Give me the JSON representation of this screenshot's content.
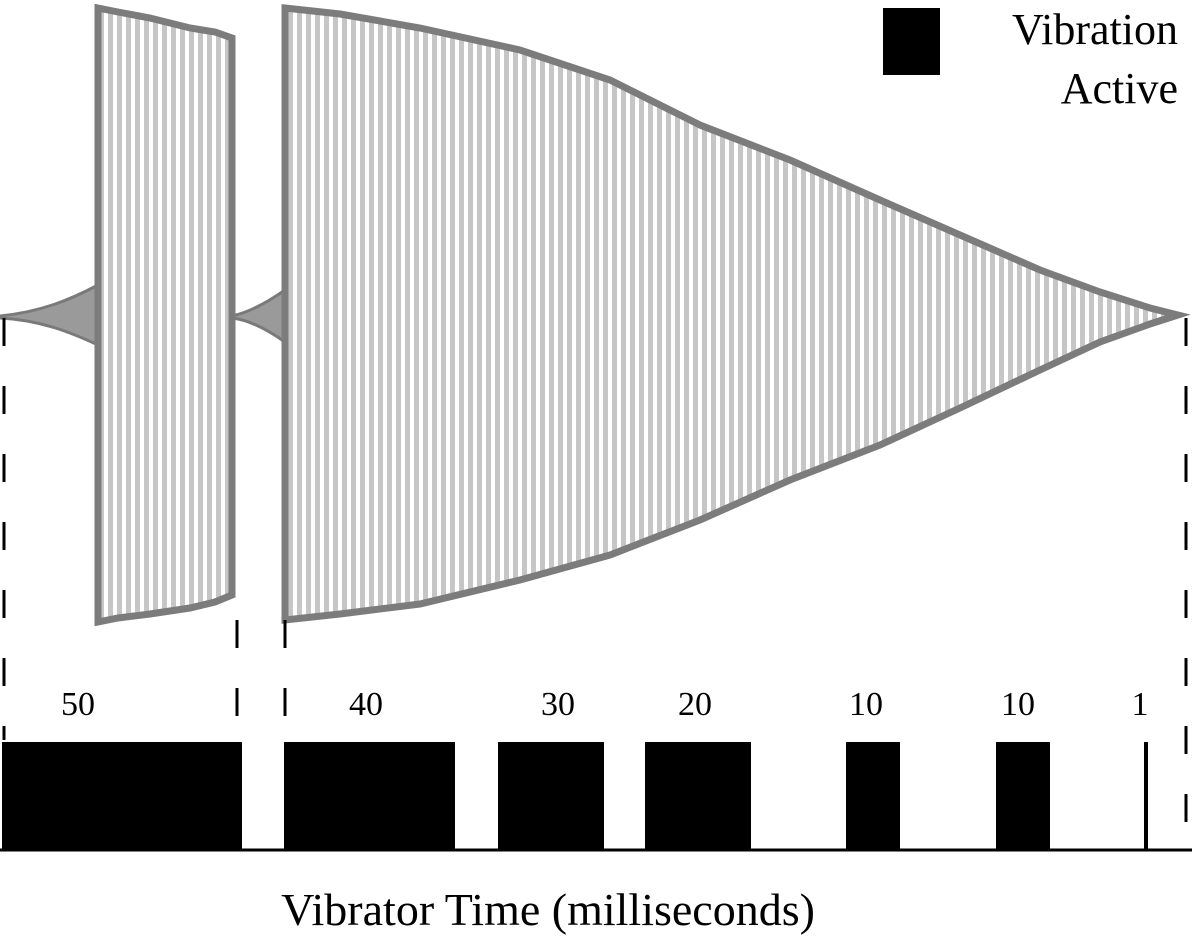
{
  "legend": {
    "line1": "Vibration",
    "line2": "Active",
    "swatch_color": "#000000"
  },
  "segments": [
    {
      "label": "50",
      "duration_ms": 50
    },
    {
      "label": "40",
      "duration_ms": 40
    },
    {
      "label": "30",
      "duration_ms": 30
    },
    {
      "label": "20",
      "duration_ms": 20
    },
    {
      "label": "10",
      "duration_ms": 10
    },
    {
      "label": "10",
      "duration_ms": 10
    },
    {
      "label": "1",
      "duration_ms": 1
    }
  ],
  "x_axis_label": "Vibrator Time (milliseconds)",
  "colors": {
    "waveform_fill": "#c8c8c8",
    "waveform_edge": "#808080",
    "bars": "#000000",
    "dashes": "#000000"
  }
}
